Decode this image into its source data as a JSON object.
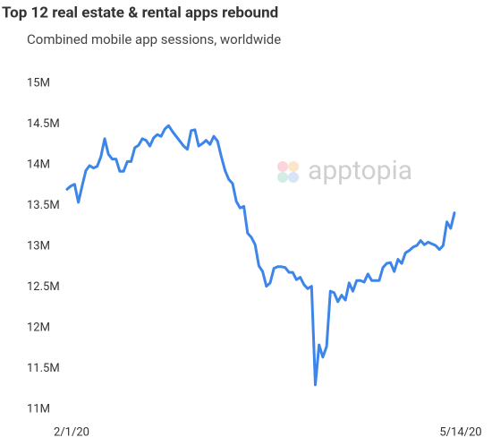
{
  "chart_data": {
    "type": "line",
    "title": "Top 12 real estate & rental apps rebound",
    "subtitle": "Combined mobile app sessions, worldwide",
    "watermark": "apptopia",
    "categories": [
      "2/1/20",
      null,
      null,
      null,
      null,
      null,
      null,
      null,
      null,
      null,
      null,
      null,
      null,
      null,
      null,
      null,
      null,
      null,
      null,
      null,
      null,
      null,
      null,
      null,
      null,
      null,
      null,
      null,
      null,
      null,
      null,
      null,
      null,
      null,
      null,
      null,
      null,
      null,
      null,
      null,
      null,
      null,
      null,
      null,
      null,
      null,
      null,
      null,
      null,
      null,
      null,
      null,
      null,
      null,
      null,
      null,
      null,
      null,
      null,
      null,
      null,
      null,
      null,
      null,
      null,
      null,
      null,
      null,
      null,
      null,
      null,
      null,
      null,
      null,
      null,
      null,
      null,
      null,
      null,
      null,
      null,
      null,
      null,
      null,
      null,
      null,
      null,
      null,
      null,
      null,
      null,
      null,
      null,
      null,
      null,
      null,
      null,
      null,
      null,
      null,
      null,
      null,
      null,
      "5/14/20"
    ],
    "series": [
      {
        "color": "#3d85e8",
        "values": [
          13.7,
          13.74,
          13.76,
          13.54,
          13.74,
          13.93,
          13.99,
          13.96,
          13.98,
          14.1,
          14.32,
          14.13,
          14.07,
          14.07,
          13.92,
          13.92,
          14.04,
          14.04,
          14.21,
          14.24,
          14.32,
          14.3,
          14.23,
          14.33,
          14.37,
          14.35,
          14.44,
          14.48,
          14.41,
          14.35,
          14.29,
          14.23,
          14.19,
          14.42,
          14.43,
          14.23,
          14.26,
          14.3,
          14.25,
          14.35,
          14.29,
          14.1,
          13.93,
          13.82,
          13.77,
          13.55,
          13.47,
          13.49,
          13.16,
          13.11,
          13.02,
          12.76,
          12.69,
          12.51,
          12.55,
          12.73,
          12.75,
          12.75,
          12.74,
          12.68,
          12.68,
          12.59,
          12.62,
          12.53,
          12.48,
          12.51,
          11.3,
          11.79,
          11.64,
          11.77,
          12.45,
          12.43,
          12.32,
          12.4,
          12.34,
          12.55,
          12.45,
          12.58,
          12.58,
          12.56,
          12.66,
          12.58,
          12.58,
          12.58,
          12.74,
          12.79,
          12.8,
          12.69,
          12.84,
          12.79,
          12.92,
          12.95,
          12.99,
          13.01,
          13.07,
          13.02,
          13.05,
          13.03,
          13.01,
          12.96,
          13.01,
          13.3,
          13.22,
          13.41
        ]
      }
    ],
    "ylim": [
      11,
      15
    ],
    "yticks": [
      {
        "value": 11,
        "label": "11M"
      },
      {
        "value": 11.5,
        "label": "11.5M"
      },
      {
        "value": 12,
        "label": "12M"
      },
      {
        "value": 12.5,
        "label": "12.5M"
      },
      {
        "value": 13,
        "label": "13M"
      },
      {
        "value": 13.5,
        "label": "13.5M"
      },
      {
        "value": 14,
        "label": "14M"
      },
      {
        "value": 14.5,
        "label": "14.5M"
      },
      {
        "value": 15,
        "label": "15M"
      }
    ],
    "grid": false
  }
}
